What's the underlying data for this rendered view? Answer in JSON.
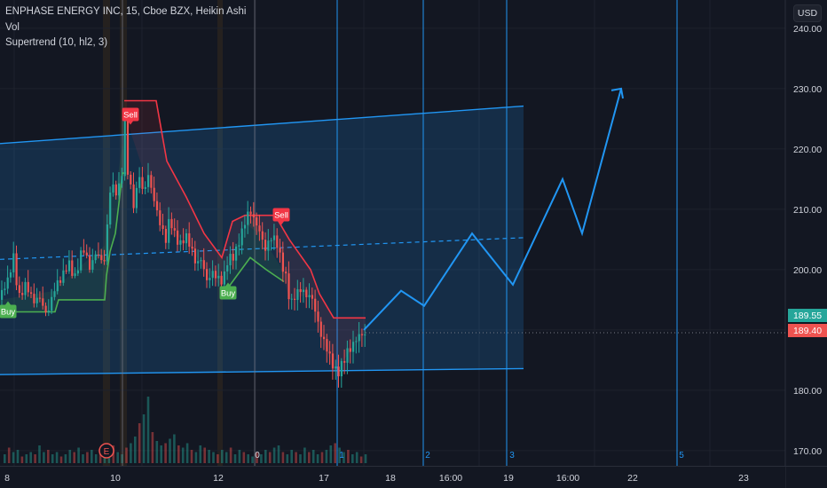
{
  "header": {
    "symbol": "ENPHASE ENERGY INC, 15, Cboe BZX, Heikin Ashi",
    "vol": "Vol",
    "supertrend": "Supertrend (10, hl2, 3)"
  },
  "currency": "USD",
  "colors": {
    "background": "#131722",
    "up": "#26a69a",
    "down": "#ef5350",
    "channel": "#2962ff",
    "projection": "#2196f3",
    "supertrend_up": "#4caf50",
    "supertrend_down": "#f23645"
  },
  "price_axis": {
    "ticks": [
      {
        "label": "240.00",
        "value": 240
      },
      {
        "label": "230.00",
        "value": 230
      },
      {
        "label": "220.00",
        "value": 220
      },
      {
        "label": "210.00",
        "value": 210
      },
      {
        "label": "200.00",
        "value": 200
      },
      {
        "label": "180.00",
        "value": 180
      },
      {
        "label": "170.00",
        "value": 170
      }
    ],
    "current_price": {
      "label": "189.55",
      "value": 189.55,
      "color": "#26a69a"
    },
    "close_price": {
      "label": "189.40",
      "value": 189.4,
      "color": "#ef5350"
    }
  },
  "time_axis": {
    "labels": [
      "8",
      "10",
      "12",
      "17",
      "18",
      "16:00",
      "19",
      "16:00",
      "22",
      "23"
    ]
  },
  "signals": [
    {
      "text": "Buy",
      "type": "buy"
    },
    {
      "text": "Sell",
      "type": "sell"
    },
    {
      "text": "Buy",
      "type": "buy"
    },
    {
      "text": "Sell",
      "type": "sell"
    }
  ],
  "event_marker": "E",
  "vline_labels": [
    "0",
    "1",
    "2",
    "3",
    "5"
  ],
  "chart_data": {
    "type": "candlestick",
    "ylim": [
      164,
      248
    ],
    "price_path": [
      [
        0,
        195
      ],
      [
        8,
        198
      ],
      [
        14,
        203
      ],
      [
        20,
        196
      ],
      [
        28,
        197
      ],
      [
        36,
        194
      ],
      [
        44,
        196
      ],
      [
        52,
        193
      ],
      [
        60,
        196
      ],
      [
        68,
        198
      ],
      [
        76,
        202
      ],
      [
        84,
        199
      ],
      [
        92,
        203
      ],
      [
        100,
        200
      ],
      [
        108,
        204
      ],
      [
        116,
        201
      ],
      [
        120,
        207
      ],
      [
        124,
        214
      ],
      [
        128,
        212
      ],
      [
        132,
        213
      ],
      [
        136,
        216
      ],
      [
        138,
        221
      ],
      [
        140,
        226
      ],
      [
        142,
        218
      ],
      [
        146,
        214
      ],
      [
        150,
        210
      ],
      [
        156,
        215
      ],
      [
        160,
        212
      ],
      [
        166,
        216
      ],
      [
        170,
        214
      ],
      [
        176,
        210
      ],
      [
        180,
        207
      ],
      [
        186,
        204
      ],
      [
        190,
        208
      ],
      [
        196,
        206
      ],
      [
        202,
        205
      ],
      [
        208,
        206
      ],
      [
        214,
        203
      ],
      [
        220,
        200
      ],
      [
        226,
        202
      ],
      [
        232,
        199
      ],
      [
        238,
        200
      ],
      [
        244,
        198
      ],
      [
        250,
        197
      ],
      [
        256,
        202
      ],
      [
        262,
        203
      ],
      [
        268,
        205
      ],
      [
        274,
        207
      ],
      [
        280,
        209
      ],
      [
        286,
        208
      ],
      [
        292,
        207
      ],
      [
        298,
        204
      ],
      [
        304,
        205
      ],
      [
        310,
        204
      ],
      [
        316,
        201
      ],
      [
        322,
        199
      ],
      [
        326,
        195
      ],
      [
        332,
        196
      ],
      [
        338,
        196
      ],
      [
        344,
        195
      ],
      [
        350,
        196
      ],
      [
        356,
        193
      ],
      [
        360,
        190
      ],
      [
        364,
        188
      ],
      [
        368,
        186
      ],
      [
        372,
        184
      ],
      [
        376,
        183
      ],
      [
        380,
        183
      ],
      [
        384,
        185
      ],
      [
        390,
        187
      ],
      [
        396,
        187
      ],
      [
        402,
        188
      ],
      [
        408,
        189
      ],
      [
        412,
        189.55
      ]
    ],
    "supertrend_up": [
      [
        0,
        193
      ],
      [
        62,
        193
      ],
      [
        66,
        195
      ],
      [
        118,
        195
      ],
      [
        120,
        199
      ],
      [
        124,
        203
      ],
      [
        130,
        206
      ],
      [
        138,
        216
      ],
      [
        142,
        216
      ]
    ],
    "supertrend_down": [
      [
        140,
        228
      ],
      [
        176,
        228
      ],
      [
        188,
        218
      ],
      [
        210,
        212
      ],
      [
        230,
        206
      ],
      [
        250,
        202
      ],
      [
        262,
        208
      ],
      [
        276,
        209
      ],
      [
        310,
        209
      ],
      [
        326,
        205
      ],
      [
        350,
        200
      ],
      [
        360,
        196
      ],
      [
        376,
        192
      ],
      [
        412,
        192
      ]
    ],
    "supertrend_up2": [
      [
        252,
        196
      ],
      [
        262,
        198
      ],
      [
        282,
        202
      ],
      [
        300,
        200
      ],
      [
        320,
        198
      ]
    ],
    "channel": {
      "upper": [
        [
          0,
          220.9
        ],
        [
          590,
          227.1
        ]
      ],
      "lower": [
        [
          0,
          182.6
        ],
        [
          590,
          183.6
        ]
      ],
      "mid": [
        [
          0,
          201.7
        ],
        [
          590,
          205.3
        ]
      ]
    },
    "projection": [
      [
        410,
        190
      ],
      [
        452,
        196.5
      ],
      [
        478,
        194
      ],
      [
        532,
        206
      ],
      [
        578,
        197.5
      ],
      [
        634,
        215
      ],
      [
        656,
        206
      ],
      [
        700,
        230
      ]
    ],
    "vertical_lines": [
      138,
      287,
      380,
      477,
      571,
      763
    ],
    "volume": [
      4,
      7,
      5,
      6,
      3,
      4,
      5,
      4,
      8,
      5,
      6,
      4,
      5,
      3,
      4,
      6,
      5,
      7,
      4,
      5,
      6,
      4,
      5,
      3,
      6,
      8,
      5,
      4,
      7,
      9,
      12,
      18,
      22,
      30,
      14,
      10,
      8,
      9,
      11,
      13,
      8,
      7,
      9,
      6,
      5,
      8,
      7,
      6,
      5,
      4,
      6,
      5,
      7,
      4,
      6,
      5,
      4,
      3,
      5,
      4,
      6,
      5,
      7,
      8,
      5,
      4,
      6,
      5,
      4,
      7,
      5,
      6,
      4,
      5,
      6,
      8,
      9,
      7,
      5,
      6,
      4,
      5,
      3,
      4,
      5,
      6
    ]
  }
}
